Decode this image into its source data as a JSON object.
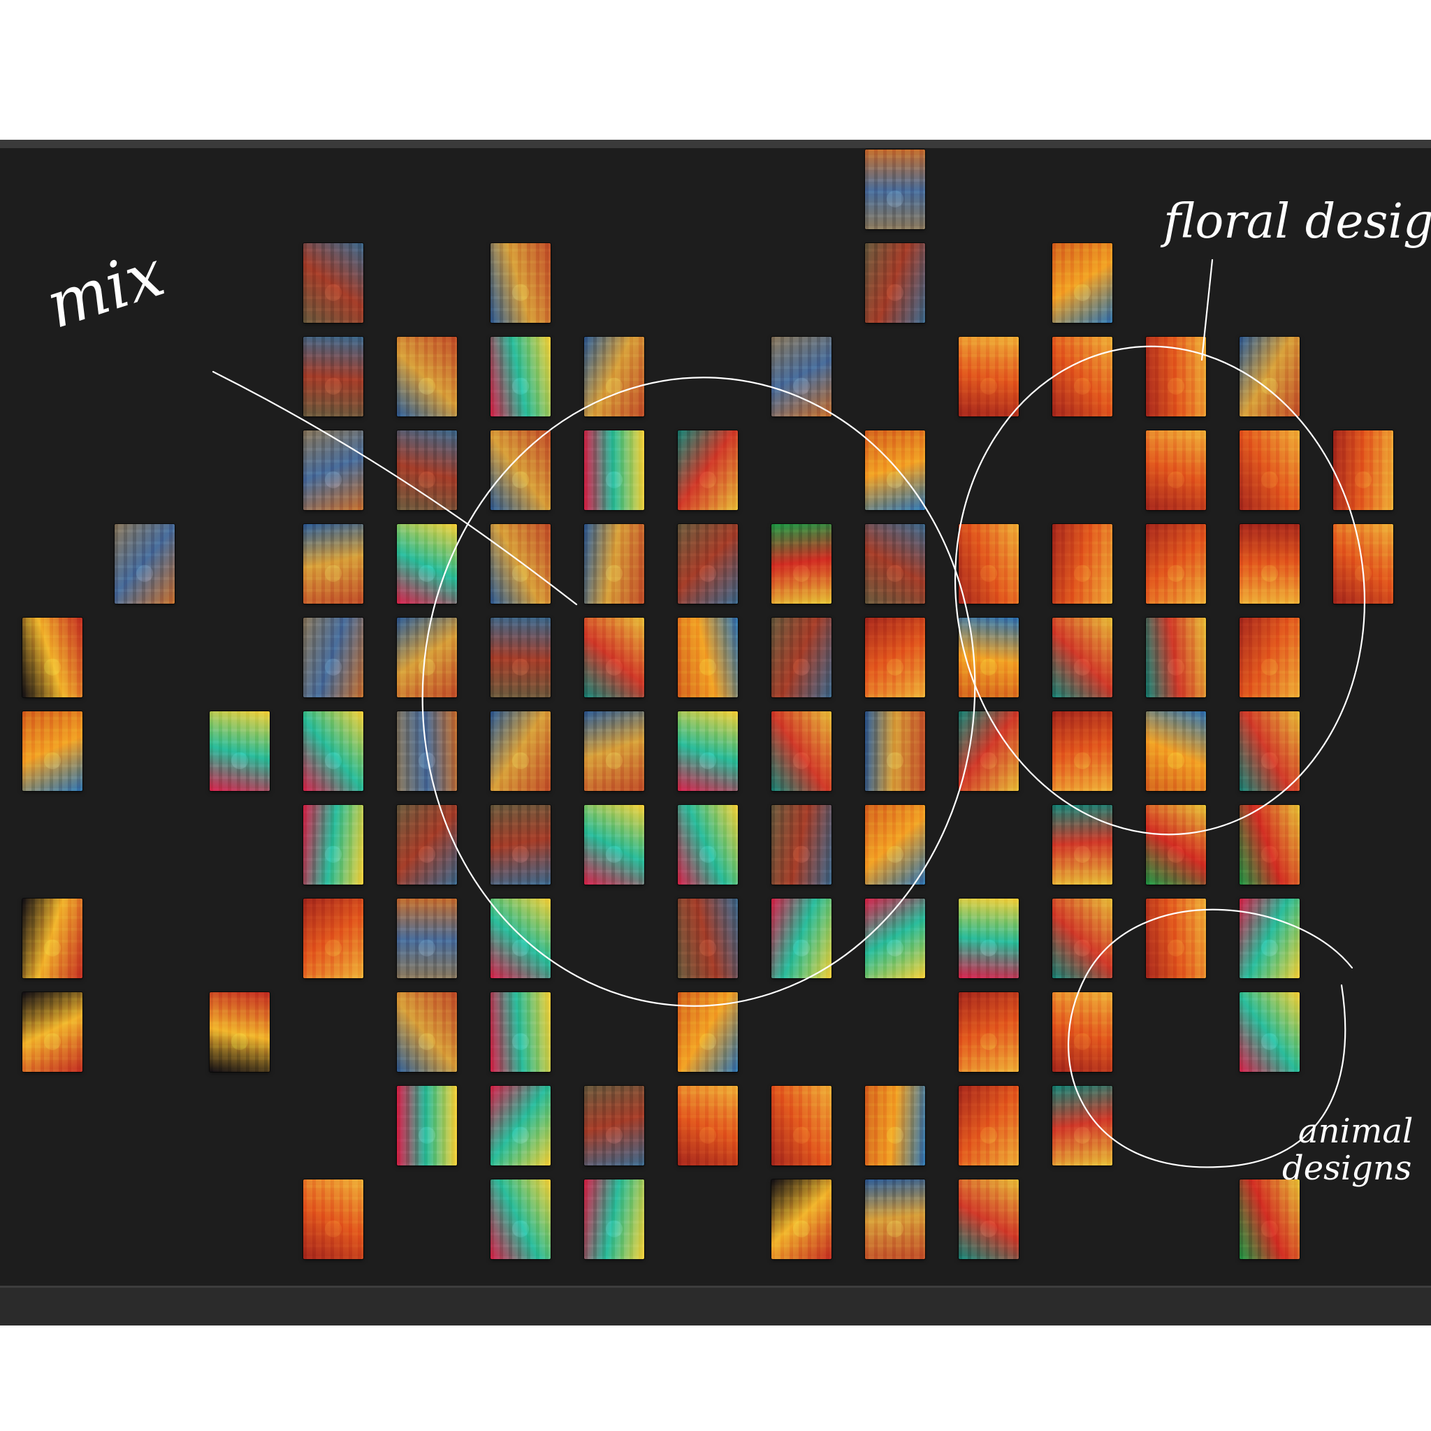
{
  "board": {
    "background": "#1d1d1d",
    "annotations": {
      "mix": "mix",
      "floral": "floral designs",
      "animal_line1": "animal",
      "animal_line2": "designs"
    },
    "thumbnail_count": 100,
    "thumbnail_palette": {
      "blue": [
        "#2f5f99",
        "#d9a23c",
        "#c2502a"
      ],
      "city": [
        "#8c7a5e",
        "#4a6f9d",
        "#c8722f"
      ],
      "street": [
        "#6c5c3f",
        "#a73f2a",
        "#3d6b8f"
      ],
      "red": [
        "#a8281d",
        "#e35b1f",
        "#f0b33a"
      ],
      "teal": [
        "#16877a",
        "#d23c2b",
        "#e9c13b"
      ],
      "night": [
        "#120f16",
        "#f2b72e",
        "#c52f24"
      ],
      "green": [
        "#1f9b47",
        "#d32f24",
        "#e8c63a"
      ],
      "orange": [
        "#d6681f",
        "#f3a426",
        "#2f77b5"
      ],
      "bright": [
        "#d8234d",
        "#2bbd9d",
        "#f7d23c"
      ]
    }
  }
}
